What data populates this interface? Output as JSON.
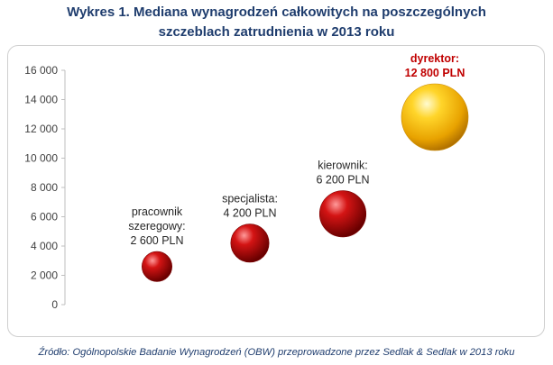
{
  "title_line1": "Wykres 1. Mediana wynagrodzeń całkowitych na poszczególnych",
  "title_line2": "szczeblach zatrudnienia w 2013 roku",
  "source": "Źródło: Ogólnopolskie Badanie Wynagrodzeń (OBW) przeprowadzone przez Sedlak & Sedlak w 2013 roku",
  "chart_data": {
    "type": "bubble",
    "ylim": [
      0,
      16000
    ],
    "yticks": [
      "0",
      "2 000",
      "4 000",
      "6 000",
      "8 000",
      "10 000",
      "12 000",
      "14 000",
      "16 000"
    ],
    "grid": false,
    "points": [
      {
        "x": 1,
        "y": 2600,
        "label": [
          "pracownik",
          "szeregowy:",
          "2 600 PLN"
        ],
        "color": "#c00000",
        "highlight": false
      },
      {
        "x": 2,
        "y": 4200,
        "label": [
          "specjalista:",
          "4 200 PLN"
        ],
        "color": "#c00000",
        "highlight": false
      },
      {
        "x": 3,
        "y": 6200,
        "label": [
          "kierownik:",
          "6 200 PLN"
        ],
        "color": "#c00000",
        "highlight": false
      },
      {
        "x": 4,
        "y": 12800,
        "label": [
          "dyrektor:",
          "12 800 PLN"
        ],
        "color": "#f2b705",
        "highlight": true
      }
    ]
  }
}
